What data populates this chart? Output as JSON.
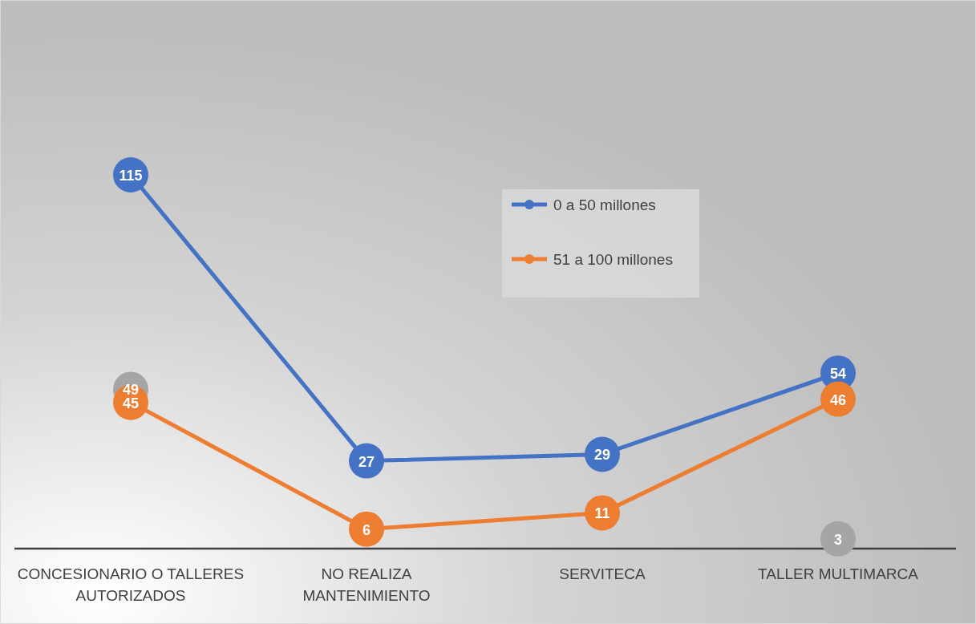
{
  "chart_data": {
    "type": "line",
    "categories": [
      "CONCESIONARIO O TALLERES AUTORIZADOS",
      "NO REALIZA MANTENIMIENTO",
      "SERVITECA",
      "TALLER MULTIMARCA"
    ],
    "series": [
      {
        "name": "0 a 50 millones",
        "color": "#4472c4",
        "values": [
          115,
          27,
          29,
          54
        ]
      },
      {
        "name": "51 a 100 millones",
        "color": "#ed7d31",
        "values": [
          45,
          6,
          11,
          46
        ]
      },
      {
        "type": "scatter",
        "color": "#a5a5a5",
        "values": [
          49,
          null,
          null,
          3
        ]
      }
    ],
    "data_labels": true,
    "marker": "circle",
    "line_style": "solid",
    "grid": false,
    "legend": "top right",
    "tick_labels": "x"
  }
}
